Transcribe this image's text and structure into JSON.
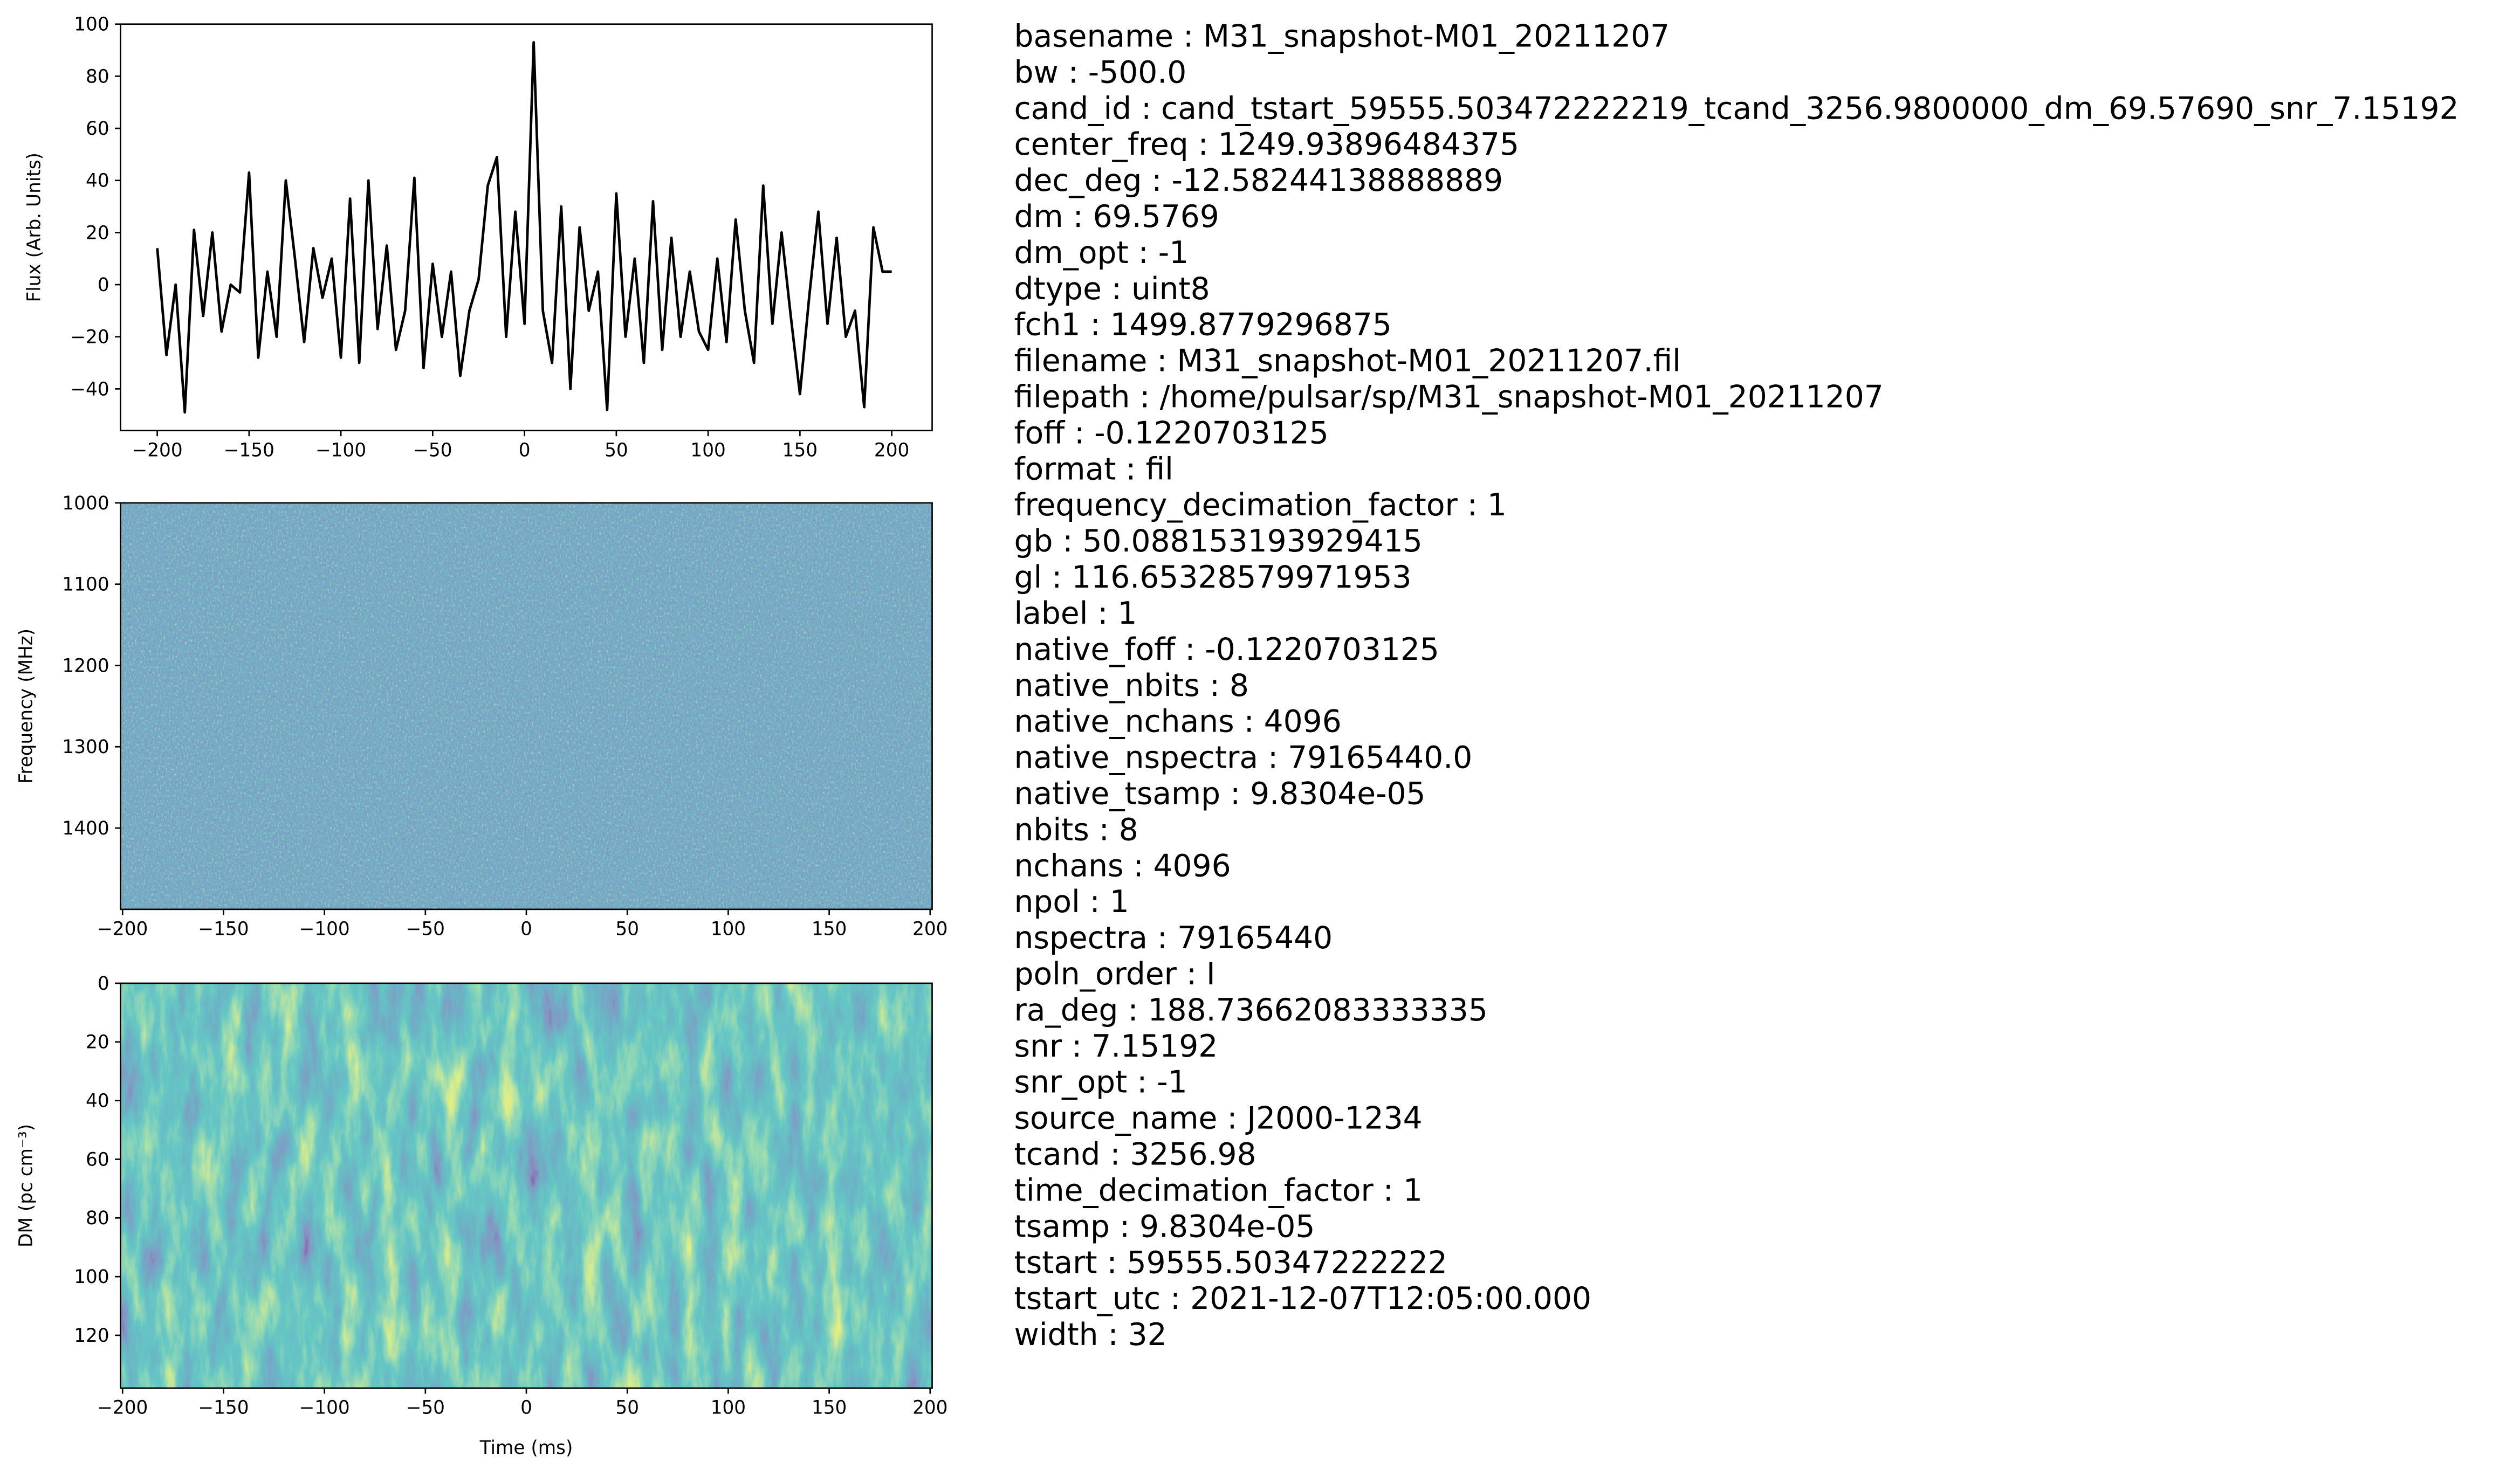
{
  "chart_data": [
    {
      "type": "line",
      "ylabel": "Flux (Arb. Units)",
      "color": "#000000",
      "x": [
        -200,
        -195,
        -190,
        -185,
        -180,
        -175,
        -170,
        -165,
        -160,
        -155,
        -150,
        -145,
        -140,
        -135,
        -130,
        -125,
        -120,
        -115,
        -110,
        -105,
        -100,
        -95,
        -90,
        -85,
        -80,
        -75,
        -70,
        -65,
        -60,
        -55,
        -50,
        -45,
        -40,
        -35,
        -30,
        -25,
        -20,
        -15,
        -10,
        -5,
        0,
        5,
        10,
        15,
        20,
        25,
        30,
        35,
        40,
        45,
        50,
        55,
        60,
        65,
        70,
        75,
        80,
        85,
        90,
        95,
        100,
        105,
        110,
        115,
        120,
        125,
        130,
        135,
        140,
        145,
        150,
        155,
        160,
        165,
        170,
        175,
        180,
        185,
        190,
        195,
        200
      ],
      "values": [
        14,
        -27,
        0,
        -49,
        21,
        -12,
        20,
        -18,
        0,
        -3,
        43,
        -28,
        5,
        -20,
        40,
        10,
        -22,
        14,
        -5,
        10,
        -28,
        33,
        -30,
        40,
        -17,
        15,
        -25,
        -10,
        41,
        -32,
        8,
        -20,
        5,
        -35,
        -10,
        2,
        38,
        49,
        -20,
        28,
        -15,
        93,
        -10,
        -30,
        30,
        -40,
        22,
        -10,
        5,
        -48,
        35,
        -20,
        10,
        -30,
        32,
        -25,
        18,
        -20,
        5,
        -18,
        -25,
        10,
        -22,
        25,
        -10,
        -30,
        38,
        -15,
        20,
        -12,
        -42,
        -5,
        28,
        -15,
        18,
        -20,
        -10,
        -47,
        22,
        5,
        5
      ],
      "xlim": [
        -220,
        222
      ],
      "ylim": [
        -56,
        100
      ],
      "xticks": [
        {
          "value": -200,
          "label": "−200"
        },
        {
          "value": -150,
          "label": "−150"
        },
        {
          "value": -100,
          "label": "−100"
        },
        {
          "value": -50,
          "label": "−50"
        },
        0,
        50,
        100,
        150,
        200
      ],
      "yticks": [
        {
          "value": -40,
          "label": "−40"
        },
        {
          "value": -20,
          "label": "−20"
        },
        0,
        20,
        40,
        60,
        80,
        100
      ]
    },
    {
      "type": "heatmap",
      "ylabel": "Frequency (MHz)",
      "xlim": [
        -201,
        201
      ],
      "ylim": [
        1500,
        1000
      ],
      "xticks": [
        {
          "value": -200,
          "label": "−200"
        },
        {
          "value": -150,
          "label": "−150"
        },
        {
          "value": -100,
          "label": "−100"
        },
        {
          "value": -50,
          "label": "−50"
        },
        0,
        50,
        100,
        150,
        200
      ],
      "yticks": [
        1000,
        1100,
        1200,
        1300,
        1400
      ]
    },
    {
      "type": "heatmap",
      "xlabel": "Time (ms)",
      "ylabel": "DM (pc cm⁻³)",
      "xlim": [
        -201,
        201
      ],
      "ylim": [
        138,
        0
      ],
      "xticks": [
        {
          "value": -200,
          "label": "−200"
        },
        {
          "value": -150,
          "label": "−150"
        },
        {
          "value": -100,
          "label": "−100"
        },
        {
          "value": -50,
          "label": "−50"
        },
        0,
        50,
        100,
        150,
        200
      ],
      "yticks": [
        0,
        20,
        40,
        60,
        80,
        100,
        120
      ]
    }
  ],
  "metadata": [
    "basename : M31_snapshot-M01_20211207",
    "bw : -500.0",
    "cand_id : cand_tstart_59555.503472222219_tcand_3256.9800000_dm_69.57690_snr_7.15192",
    "center_freq : 1249.93896484375",
    "dec_deg : -12.58244138888889",
    "dm : 69.5769",
    "dm_opt : -1",
    "dtype : uint8",
    "fch1 : 1499.8779296875",
    "filename : M31_snapshot-M01_20211207.fil",
    "filepath : /home/pulsar/sp/M31_snapshot-M01_20211207",
    "foff : -0.1220703125",
    "format : fil",
    "frequency_decimation_factor : 1",
    "gb : 50.088153193929415",
    "gl : 116.65328579971953",
    "label : 1",
    "native_foff : -0.1220703125",
    "native_nbits : 8",
    "native_nchans : 4096",
    "native_nspectra : 79165440.0",
    "native_tsamp : 9.8304e-05",
    "nbits : 8",
    "nchans : 4096",
    "npol : 1",
    "nspectra : 79165440",
    "poln_order : I",
    "ra_deg : 188.73662083333335",
    "snr : 7.15192",
    "snr_opt : -1",
    "source_name : J2000-1234",
    "tcand : 3256.98",
    "time_decimation_factor : 1",
    "tsamp : 9.8304e-05",
    "tstart : 59555.50347222222",
    "tstart_utc : 2021-12-07T12:05:00.000",
    "width : 32"
  ]
}
